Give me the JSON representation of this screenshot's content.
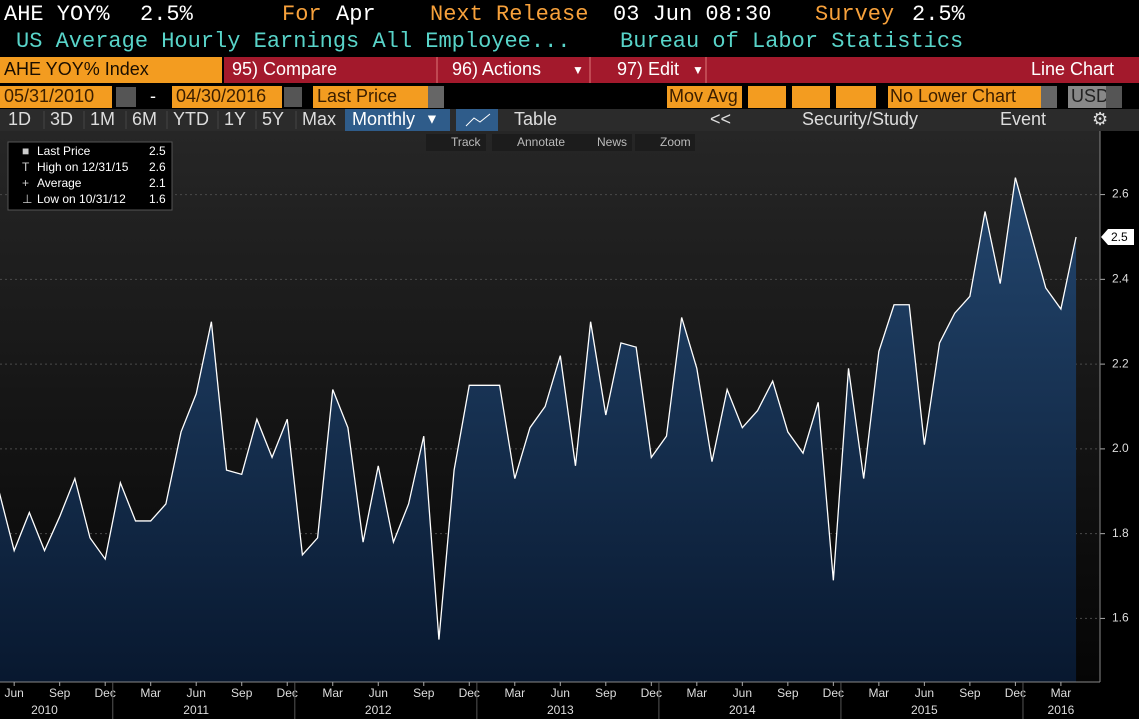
{
  "header": {
    "ticker": "AHE YOY%",
    "last": "2.5%",
    "for_label": "For",
    "for_value": "Apr",
    "next_label": "Next Release",
    "next_value": "03 Jun 08:30",
    "survey_label": "Survey",
    "survey_value": "2.5%",
    "description": "US Average Hourly Earnings All Employee...",
    "source": "Bureau of Labor Statistics"
  },
  "menu": {
    "security": "AHE YOY% Index",
    "compare": "95) Compare",
    "actions": "96) Actions",
    "edit": "97) Edit",
    "view": "Line Chart"
  },
  "settings": {
    "start": "05/31/2010",
    "dash": "-",
    "end": "04/30/2016",
    "field": "Last Price",
    "mov_avg": "Mov Avg",
    "lower": "No Lower Chart",
    "currency": "USD"
  },
  "toolbar": {
    "ranges": [
      "1D",
      "3D",
      "1M",
      "6M",
      "YTD",
      "1Y",
      "5Y",
      "Max"
    ],
    "period": "Monthly",
    "table": "Table",
    "back": "<<",
    "study": "Security/Study",
    "event": "Event"
  },
  "chart_tools": [
    "Track",
    "Annotate",
    "News",
    "Zoom"
  ],
  "chart_data": {
    "type": "area",
    "x": [
      "2010-05",
      "2010-06",
      "2010-07",
      "2010-08",
      "2010-09",
      "2010-10",
      "2010-11",
      "2010-12",
      "2011-01",
      "2011-02",
      "2011-03",
      "2011-04",
      "2011-05",
      "2011-06",
      "2011-07",
      "2011-08",
      "2011-09",
      "2011-10",
      "2011-11",
      "2011-12",
      "2012-01",
      "2012-02",
      "2012-03",
      "2012-04",
      "2012-05",
      "2012-06",
      "2012-07",
      "2012-08",
      "2012-09",
      "2012-10",
      "2012-11",
      "2012-12",
      "2013-01",
      "2013-02",
      "2013-03",
      "2013-04",
      "2013-05",
      "2013-06",
      "2013-07",
      "2013-08",
      "2013-09",
      "2013-10",
      "2013-11",
      "2013-12",
      "2014-01",
      "2014-02",
      "2014-03",
      "2014-04",
      "2014-05",
      "2014-06",
      "2014-07",
      "2014-08",
      "2014-09",
      "2014-10",
      "2014-11",
      "2014-12",
      "2015-01",
      "2015-02",
      "2015-03",
      "2015-04",
      "2015-05",
      "2015-06",
      "2015-07",
      "2015-08",
      "2015-09",
      "2015-10",
      "2015-11",
      "2015-12",
      "2016-01",
      "2016-02",
      "2016-03",
      "2016-04"
    ],
    "values": [
      1.9,
      1.76,
      1.85,
      1.76,
      1.84,
      1.93,
      1.79,
      1.74,
      1.92,
      1.83,
      1.83,
      1.87,
      2.04,
      2.13,
      2.3,
      1.95,
      1.94,
      2.07,
      1.98,
      2.07,
      1.75,
      1.79,
      2.14,
      2.05,
      1.78,
      1.96,
      1.78,
      1.87,
      2.03,
      1.55,
      1.95,
      2.15,
      2.15,
      2.15,
      1.93,
      2.05,
      2.1,
      2.22,
      1.96,
      2.3,
      2.08,
      2.25,
      2.24,
      1.98,
      2.03,
      2.31,
      2.19,
      1.97,
      2.14,
      2.05,
      2.09,
      2.16,
      2.04,
      1.99,
      2.11,
      1.69,
      2.19,
      1.93,
      2.23,
      2.34,
      2.34,
      2.01,
      2.25,
      2.32,
      2.36,
      2.56,
      2.39,
      2.64,
      2.51,
      2.38,
      2.33,
      2.5
    ],
    "color": "#ffffff",
    "fill": "#17355c",
    "ylim": [
      1.45,
      2.75
    ],
    "yticks": [
      1.6,
      1.8,
      {
        "value": 2.0,
        "label": "2.0"
      },
      2.2,
      2.4,
      2.6
    ],
    "grid": true,
    "xticks": [
      {
        "value": "2010-06",
        "label": "Jun"
      },
      {
        "value": "2010-09",
        "label": "Sep"
      },
      {
        "value": "2010-12",
        "label": "Dec"
      },
      {
        "value": "2011-03",
        "label": "Mar"
      },
      {
        "value": "2011-06",
        "label": "Jun"
      },
      {
        "value": "2011-09",
        "label": "Sep"
      },
      {
        "value": "2011-12",
        "label": "Dec"
      },
      {
        "value": "2012-03",
        "label": "Mar"
      },
      {
        "value": "2012-06",
        "label": "Jun"
      },
      {
        "value": "2012-09",
        "label": "Sep"
      },
      {
        "value": "2012-12",
        "label": "Dec"
      },
      {
        "value": "2013-03",
        "label": "Mar"
      },
      {
        "value": "2013-06",
        "label": "Jun"
      },
      {
        "value": "2013-09",
        "label": "Sep"
      },
      {
        "value": "2013-12",
        "label": "Dec"
      },
      {
        "value": "2014-03",
        "label": "Mar"
      },
      {
        "value": "2014-06",
        "label": "Jun"
      },
      {
        "value": "2014-09",
        "label": "Sep"
      },
      {
        "value": "2014-12",
        "label": "Dec"
      },
      {
        "value": "2015-03",
        "label": "Mar"
      },
      {
        "value": "2015-06",
        "label": "Jun"
      },
      {
        "value": "2015-09",
        "label": "Sep"
      },
      {
        "value": "2015-12",
        "label": "Dec"
      },
      {
        "value": "2016-03",
        "label": "Mar"
      }
    ],
    "xticks_year": [
      {
        "value": "2010-08",
        "label": "2010"
      },
      {
        "value": "2011-06",
        "label": "2011"
      },
      {
        "value": "2012-06",
        "label": "2012"
      },
      {
        "value": "2013-06",
        "label": "2013"
      },
      {
        "value": "2014-06",
        "label": "2014"
      },
      {
        "value": "2015-06",
        "label": "2015"
      },
      {
        "value": "2016-03",
        "label": "2016"
      }
    ],
    "legend": [
      {
        "label": "Last Price",
        "value": 2.5
      },
      {
        "label": "High on 12/31/15",
        "value": 2.6
      },
      {
        "label": "Average",
        "value": 2.1
      },
      {
        "label": "Low on 10/31/12",
        "value": 1.6
      }
    ],
    "last_tag": 2.5
  }
}
